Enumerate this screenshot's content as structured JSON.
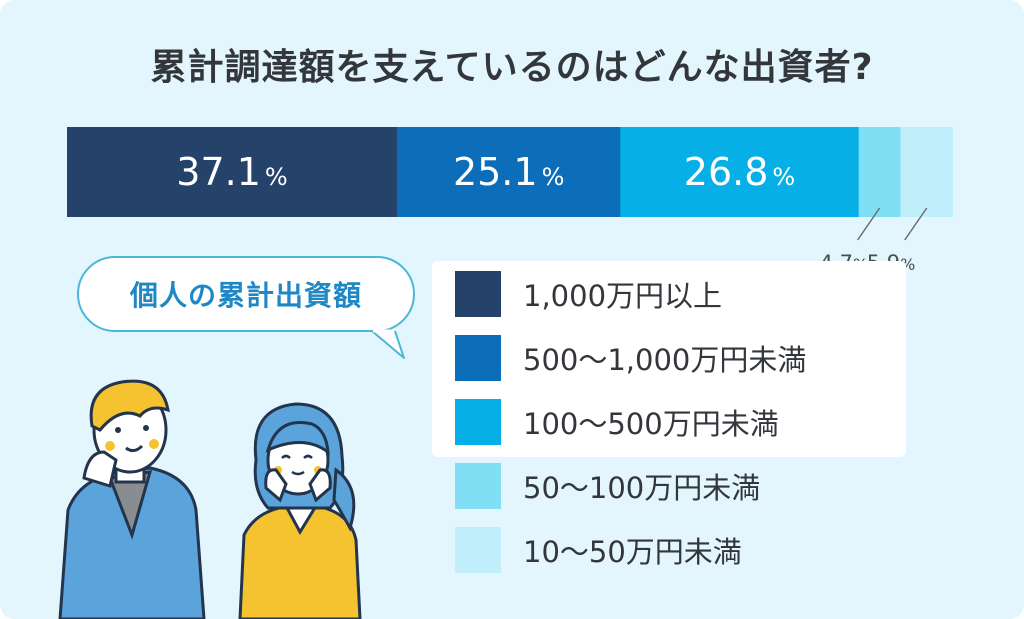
{
  "title": "累計調達額を支えているのはどんな出資者?",
  "bubble_text": "個人の累計出資額",
  "chart_data": {
    "type": "bar",
    "orientation": "horizontal-stacked",
    "categories": [
      "1,000万円以上",
      "500〜1,000万円未満",
      "100〜500万円未満",
      "50〜100万円未満",
      "10〜50万円未満"
    ],
    "values": [
      37.1,
      25.1,
      26.8,
      4.7,
      5.9
    ],
    "unit": "%",
    "colors": [
      "#25436a",
      "#0c6db8",
      "#06b0e6",
      "#80def5",
      "#c1eefb"
    ],
    "label_colors": [
      "#ffffff",
      "#ffffff",
      "#ffffff",
      "#4a4d52",
      "#4a4d52"
    ],
    "grid": false,
    "legend": "bottom-right"
  }
}
